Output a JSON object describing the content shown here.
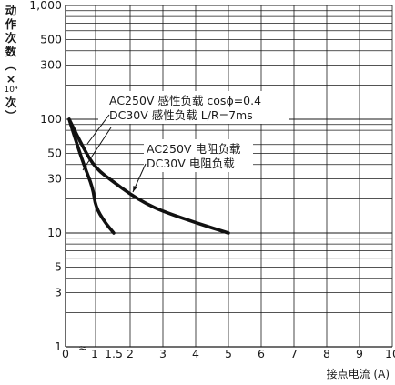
{
  "chart_data": {
    "type": "line",
    "ylabel_lines": [
      "动",
      "作",
      "次",
      "数",
      "︵",
      "×",
      "10⁴",
      "次",
      "︶"
    ],
    "xlabel": "接点电流 (A)",
    "x_axis": {
      "scale": "linear-with-break",
      "lim": [
        0,
        10
      ],
      "ticks": [
        {
          "label": "0",
          "value": 0
        },
        {
          "label": "1",
          "value": 1
        },
        {
          "label": "1.5",
          "value": 1.5
        },
        {
          "label": "2",
          "value": 2
        },
        {
          "label": "3",
          "value": 3
        },
        {
          "label": "4",
          "value": 4
        },
        {
          "label": "5",
          "value": 5
        },
        {
          "label": "6",
          "value": 6
        },
        {
          "label": "7",
          "value": 7
        },
        {
          "label": "8",
          "value": 8
        },
        {
          "label": "9",
          "value": 9
        },
        {
          "label": "10",
          "value": 10
        }
      ],
      "break_mark": "≈"
    },
    "y_axis": {
      "scale": "log",
      "lim": [
        1,
        1000
      ],
      "ticks": [
        {
          "label": "1",
          "value": 1
        },
        {
          "label": "3",
          "value": 3
        },
        {
          "label": "5",
          "value": 5
        },
        {
          "label": "10",
          "value": 10
        },
        {
          "label": "30",
          "value": 30
        },
        {
          "label": "50",
          "value": 50
        },
        {
          "label": "100",
          "value": 100
        },
        {
          "label": "300",
          "value": 300
        },
        {
          "label": "500",
          "value": 500
        },
        {
          "label": "1,000",
          "value": 1000
        }
      ]
    },
    "grid": true,
    "series": [
      {
        "name": "AC250V 感性负载 cosφ=0.4\nDC30V 感性负载 L/R=7ms",
        "label_lines": [
          "AC250V 感性负载 cosϕ=0.4",
          "DC30V 感性负载 L/R=7ms"
        ],
        "x": [
          0.1,
          0.25,
          0.5,
          0.75,
          1.0,
          1.25,
          1.5
        ],
        "y": [
          100,
          70,
          40,
          25,
          17,
          12.5,
          10
        ]
      },
      {
        "name": "AC250V 电阻负载\nDC30V 电阻负载",
        "label_lines": [
          "AC250V 电阻负载",
          "DC30V 电阻负载"
        ],
        "x": [
          0.1,
          0.5,
          1.0,
          1.5,
          2.0,
          2.5,
          3.0,
          4.0,
          5.0
        ],
        "y": [
          100,
          55,
          37,
          28,
          22,
          18,
          15.5,
          12.3,
          10
        ]
      }
    ]
  }
}
